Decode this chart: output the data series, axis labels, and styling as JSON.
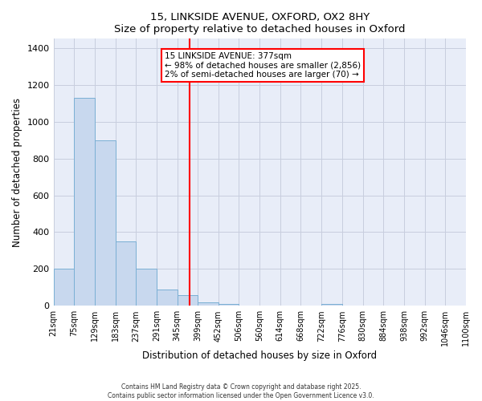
{
  "title": "15, LINKSIDE AVENUE, OXFORD, OX2 8HY",
  "subtitle": "Size of property relative to detached houses in Oxford",
  "xlabel": "Distribution of detached houses by size in Oxford",
  "ylabel": "Number of detached properties",
  "bar_color": "#c8d8ee",
  "bar_edge_color": "#7aafd4",
  "bg_color": "#e8edf8",
  "grid_color": "#c8cede",
  "vline_x": 377,
  "vline_color": "red",
  "annotation_title": "15 LINKSIDE AVENUE: 377sqm",
  "annotation_line1": "← 98% of detached houses are smaller (2,856)",
  "annotation_line2": "2% of semi-detached houses are larger (70) →",
  "bin_edges": [
    21,
    75,
    129,
    183,
    237,
    291,
    345,
    399,
    452,
    506,
    560,
    614,
    668,
    722,
    776,
    830,
    884,
    938,
    992,
    1046,
    1100
  ],
  "bin_counts": [
    200,
    1130,
    900,
    350,
    200,
    90,
    60,
    20,
    10,
    0,
    0,
    0,
    0,
    10,
    0,
    0,
    0,
    0,
    0,
    0
  ],
  "ylim": [
    0,
    1450
  ],
  "yticks": [
    0,
    200,
    400,
    600,
    800,
    1000,
    1200,
    1400
  ],
  "footer1": "Contains HM Land Registry data © Crown copyright and database right 2025.",
  "footer2": "Contains public sector information licensed under the Open Government Licence v3.0."
}
